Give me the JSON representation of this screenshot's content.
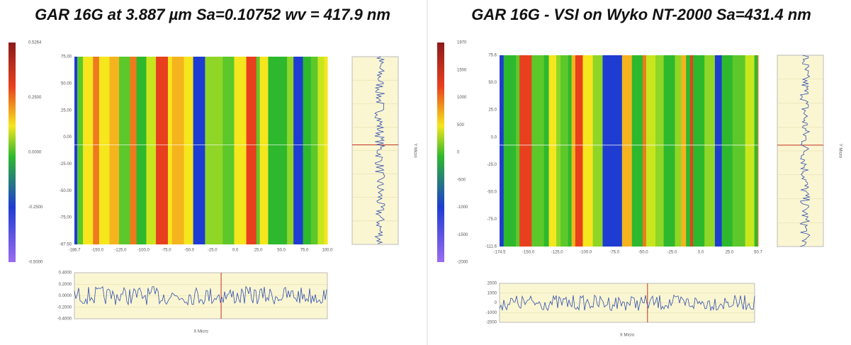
{
  "panels": [
    {
      "title": "GAR 16G at 3.887 µm Sa=0.10752 wv = 417.9 nm",
      "colorbar_labels": [
        "0.5264",
        "0.2500",
        "0.0000",
        "-0.2500",
        "-0.5000"
      ],
      "x_ticks": [
        "-186.7",
        "-150.0",
        "-125.0",
        "-100.0",
        "-75.0",
        "-50.0",
        "-25.0",
        "0.0",
        "25.0",
        "50.0",
        "75.0",
        "100.0"
      ],
      "y_ticks": [
        "75.00",
        "50.00",
        "25.00",
        "0.00",
        "-25.00",
        "-50.00",
        "-75.00",
        "-87.50"
      ],
      "profile_ticks": [
        "0.4000",
        "0.2000",
        "0.0000",
        "-0.2000",
        "-0.4000"
      ],
      "x_label": "X Micro",
      "y_label": "Y Micro"
    },
    {
      "title": "GAR 16G - VSI on Wyko NT-2000   Sa=431.4 nm",
      "colorbar_labels": [
        "1970",
        "1500",
        "1000",
        "500",
        "0",
        "-500",
        "-1000",
        "-1500",
        "-2000"
      ],
      "x_ticks": [
        "-174.5",
        "-150.0",
        "-125.0",
        "-100.0",
        "-75.0",
        "-50.0",
        "-25.0",
        "0.0",
        "25.0",
        "50.7"
      ],
      "y_ticks": [
        "75.6",
        "50.0",
        "25.0",
        "0.0",
        "-25.0",
        "-50.0",
        "-75.0",
        "-111.6"
      ],
      "profile_ticks": [
        "2000",
        "1000",
        "0",
        "-1000",
        "-2000"
      ],
      "x_label": "X Micro",
      "y_label": "Y Micro"
    }
  ]
}
